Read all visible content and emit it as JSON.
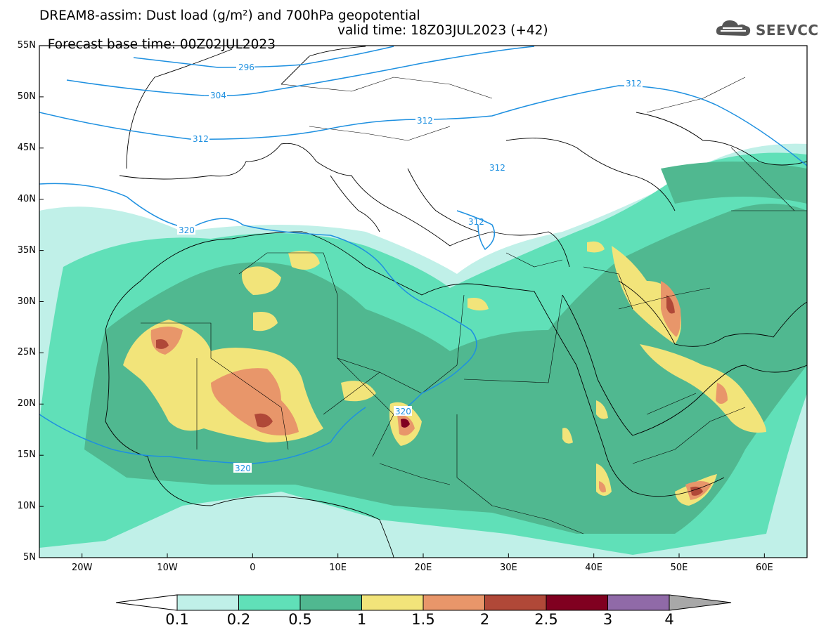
{
  "title": {
    "line1": "DREAM8-assim: Dust load (g/m²) and 700hPa geopotential",
    "line2_left": "Forecast base time: 00Z02JUL2023",
    "line2_right": "valid time: 18Z03JUL2023 (+42)"
  },
  "logo": {
    "text": "SEEVCCC",
    "icon": "cloud-icon"
  },
  "map": {
    "lon_range": [
      -25,
      65
    ],
    "lat_range": [
      5,
      55
    ],
    "y_ticks": [
      "55N",
      "50N",
      "45N",
      "40N",
      "35N",
      "30N",
      "25N",
      "20N",
      "15N",
      "10N",
      "5N"
    ],
    "x_ticks": [
      "20W",
      "10W",
      "0",
      "10E",
      "20E",
      "30E",
      "40E",
      "50E",
      "60E"
    ],
    "contour_color": "#1e90e0",
    "contour_labels": [
      "296",
      "304",
      "312",
      "312",
      "312",
      "312",
      "312",
      "320",
      "320",
      "320"
    ]
  },
  "colorbar": {
    "labels": [
      "0.1",
      "0.2",
      "0.5",
      "1",
      "1.5",
      "2",
      "2.5",
      "3",
      "4"
    ],
    "colors": [
      "#c0f0e8",
      "#60e0b8",
      "#50b890",
      "#f2e47a",
      "#e8966a",
      "#b04838",
      "#800020",
      "#906aa8"
    ],
    "under_color": "#ffffff",
    "over_color": "#a8a8a8"
  }
}
